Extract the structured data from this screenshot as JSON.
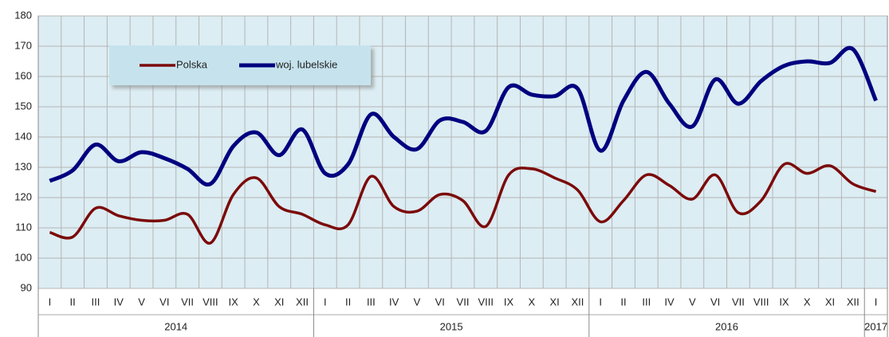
{
  "chart_data": {
    "type": "line",
    "categories": [
      "I",
      "II",
      "III",
      "IV",
      "V",
      "VI",
      "VII",
      "VIII",
      "IX",
      "X",
      "XI",
      "XII",
      "I",
      "II",
      "III",
      "IV",
      "V",
      "VI",
      "VII",
      "VIII",
      "IX",
      "X",
      "XI",
      "XII",
      "I",
      "II",
      "III",
      "IV",
      "V",
      "VI",
      "VII",
      "VIII",
      "IX",
      "X",
      "XI",
      "XII",
      "I"
    ],
    "year_labels": [
      "2014",
      "2015",
      "2016",
      "2017"
    ],
    "series": [
      {
        "name": "Polska",
        "color": "#7b0a0a",
        "values": [
          108.5,
          107,
          116.5,
          114,
          112.5,
          112.5,
          114.5,
          105,
          121,
          126.5,
          117,
          114.5,
          111,
          111,
          127,
          117,
          115.5,
          121,
          119,
          110.5,
          127.5,
          129.5,
          126.5,
          122.5,
          112,
          119,
          127.5,
          124,
          119.5,
          127.5,
          115,
          119,
          131,
          128,
          130.5,
          124.5,
          122
        ]
      },
      {
        "name": "woj. lubelskie",
        "color": "#00007f",
        "values": [
          125.5,
          129,
          137.5,
          132,
          135,
          133,
          129.5,
          124.5,
          137,
          141.5,
          134,
          142.5,
          128,
          131,
          147.5,
          140,
          136,
          145.5,
          145,
          142,
          156.5,
          154,
          153.5,
          156,
          135.5,
          152,
          161.5,
          151,
          143.5,
          159,
          151,
          158.5,
          163.5,
          165,
          164.5,
          169,
          152
        ]
      }
    ],
    "ylim": [
      90,
      180
    ],
    "yticks": [
      90,
      100,
      110,
      120,
      130,
      140,
      150,
      160,
      170,
      180
    ],
    "grid": true
  }
}
